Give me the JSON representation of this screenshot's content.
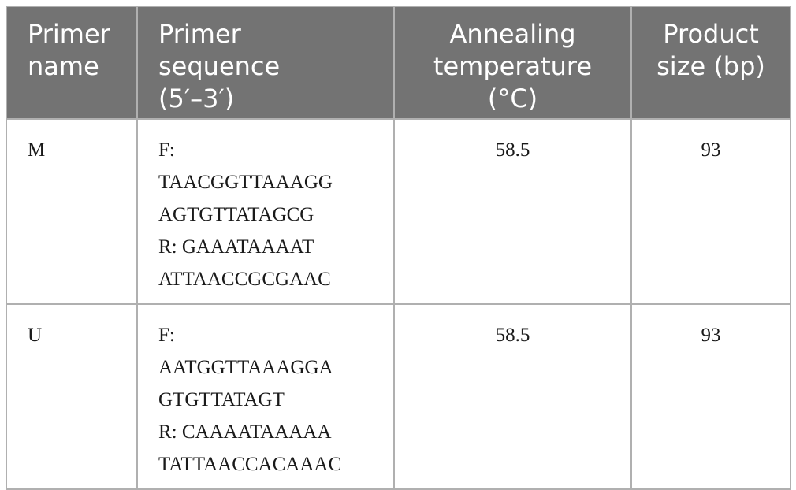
{
  "table": {
    "header": [
      [
        "Primer",
        "name"
      ],
      [
        "Primer",
        "sequence",
        "(5′–3′)"
      ],
      [
        "Annealing",
        "temperature",
        "(°C)"
      ],
      [
        "Product",
        "size (bp)"
      ]
    ],
    "rows": [
      [
        [
          "M"
        ],
        [
          "F:",
          "TAACGGTTAAAGG",
          "AGTGTTATAGCG",
          "R: GAAATAAAAT",
          "ATTAACCGCGAAC"
        ],
        [
          "58.5"
        ],
        [
          "93"
        ]
      ],
      [
        [
          "U"
        ],
        [
          "F:",
          "AATGGTTAAAGGA",
          "GTGTTATAGT",
          "R: CAAAATAAAAA",
          "TATTAACCACAAAC"
        ],
        [
          "58.5"
        ],
        [
          "93"
        ]
      ]
    ]
  }
}
